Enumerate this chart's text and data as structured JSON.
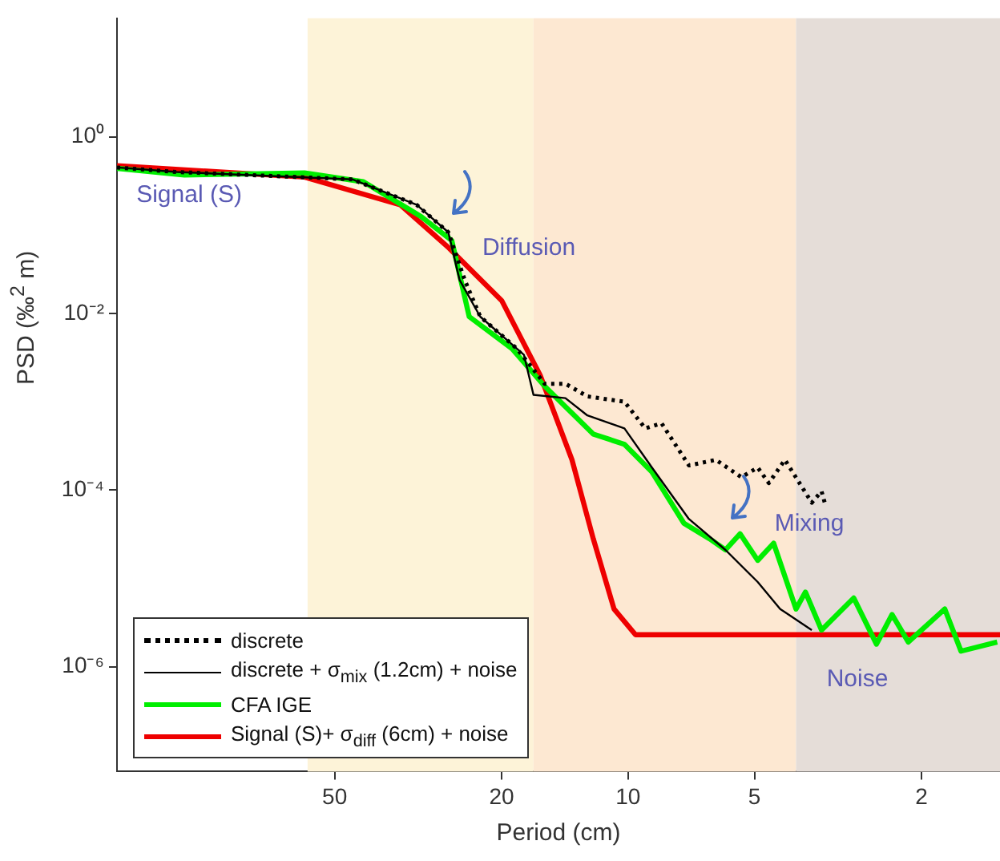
{
  "chart_data": {
    "type": "line",
    "xlabel": "Period (cm)",
    "ylabel": "PSD (‰$^{2}$ m)",
    "log": "xy",
    "xlim": [
      165,
      1.3
    ],
    "xticks": [
      50,
      20,
      10,
      5,
      2
    ],
    "ylim": [
      6.5e-08,
      22
    ],
    "yticks": [
      {
        "value": 1,
        "label": "10⁰"
      },
      {
        "value": 0.01,
        "label": "10⁻²"
      },
      {
        "value": 0.0001,
        "label": "10⁻⁴"
      },
      {
        "value": 1e-06,
        "label": "10⁻⁶"
      }
    ],
    "grid": false,
    "legend": "bottom left",
    "marker": "none",
    "bands": [
      {
        "axis": "x",
        "from": 58,
        "to": 16.8,
        "color": "#fdf3d8"
      },
      {
        "axis": "x",
        "from": 16.8,
        "to": 3.98,
        "color": "#fde8d2"
      },
      {
        "axis": "x",
        "from": 3.98,
        "to": 1.3,
        "color": "#e5ddd8"
      }
    ],
    "series": [
      {
        "name": "discrete",
        "color": "#000000",
        "line_style": "dotted",
        "x": [
          165,
          119,
          45.4,
          31.9,
          26.8,
          24.5,
          22.5,
          18.4,
          15.8,
          14.1,
          12.5,
          10.2,
          9.1,
          8.32,
          7.16,
          6.18,
          5.37,
          4.91,
          4.62,
          4.23,
          3.65,
          3.46,
          3.4
        ],
        "values": [
          0.45,
          0.4,
          0.33,
          0.17,
          0.083,
          0.024,
          0.0092,
          0.004,
          0.0016,
          0.0016,
          0.00115,
          0.001,
          0.0005,
          0.00057,
          0.00019,
          0.00022,
          0.00014,
          0.00018,
          0.00012,
          0.00022,
          7.2e-05,
          9.7e-05,
          7.2e-05
        ]
      },
      {
        "name": "discrete + σ$_{mix}$ (1.2cm) + noise",
        "color": "#000000",
        "line_style": "solid",
        "x": [
          165,
          119,
          45.4,
          31.9,
          26.8,
          25.2,
          22.5,
          17.7,
          16.8,
          14.1,
          12.5,
          10.2,
          8.77,
          7.16,
          5.86,
          4.91,
          4.34,
          3.65
        ],
        "values": [
          0.45,
          0.4,
          0.33,
          0.17,
          0.083,
          0.024,
          0.0092,
          0.0034,
          0.0012,
          0.0011,
          0.0007,
          0.0005,
          0.00018,
          4.7e-05,
          2.1e-05,
          9.1e-06,
          4.5e-06,
          2.6e-06
        ]
      },
      {
        "name": "CFA IGE",
        "color": "#00ee00",
        "line_style": "solid",
        "x": [
          165,
          114,
          59,
          42.7,
          31.1,
          26.3,
          23.9,
          18.9,
          15.8,
          12.1,
          10.2,
          8.77,
          7.36,
          6.39,
          5.86,
          5.41,
          4.91,
          4.5,
          3.98,
          3.78,
          3.46,
          2.9,
          2.56,
          2.35,
          2.15,
          1.76,
          1.61,
          1.32
        ],
        "values": [
          0.44,
          0.37,
          0.39,
          0.31,
          0.125,
          0.067,
          0.0092,
          0.004,
          0.0015,
          0.00043,
          0.00033,
          0.00016,
          4.2e-05,
          2.8e-05,
          2.1e-05,
          3.2e-05,
          1.6e-05,
          2.5e-05,
          4.5e-06,
          7e-06,
          2.6e-06,
          6e-06,
          1.8e-06,
          3.9e-06,
          1.9e-06,
          4.5e-06,
          1.5e-06,
          1.9e-06
        ]
      },
      {
        "name": "Signal (S)+ σ$_{diff}$ (6cm) + noise",
        "color": "#ee0000",
        "line_style": "solid",
        "x": [
          165,
          59,
          34.9,
          26.7,
          20,
          16.2,
          13.6,
          12.1,
          10.8,
          9.6,
          1.3
        ],
        "values": [
          0.47,
          0.35,
          0.17,
          0.055,
          0.014,
          0.002,
          0.00022,
          2.8e-05,
          4.5e-06,
          2.3e-06,
          2.3e-06
        ]
      }
    ],
    "annotations": [
      "Signal (S)",
      "Diffusion",
      "Mixing",
      "Noise"
    ]
  }
}
